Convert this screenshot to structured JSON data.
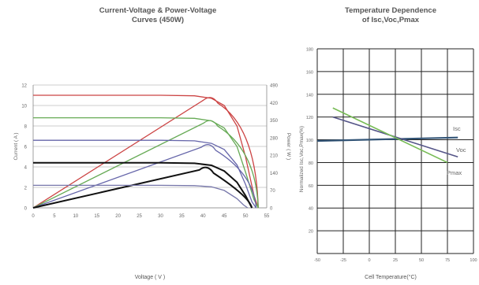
{
  "chart_data": [
    {
      "type": "line",
      "title": "Current-Voltage & Power-Voltage",
      "subtitle": "Curves (450W)",
      "xlabel": "Voltage ( V )",
      "ylabel": "Current ( A )",
      "ylabel_right": "Power ( W )",
      "xlim": [
        0,
        55
      ],
      "ylim": [
        0,
        12
      ],
      "ylim_right": [
        0,
        490
      ],
      "x_ticks": [
        "0",
        "5",
        "10",
        "15",
        "20",
        "25",
        "30",
        "35",
        "40",
        "45",
        "50",
        "55"
      ],
      "y_ticks": [
        "0",
        "2",
        "4",
        "6",
        "8",
        "10",
        "12"
      ],
      "y_ticks_right": [
        "0",
        "70",
        "140",
        "210",
        "280",
        "350",
        "420",
        "490"
      ],
      "grid": "horizontal",
      "series": [
        {
          "color": "#cc4444",
          "current_values": [
            [
              0,
              11.0
            ],
            [
              30,
              11.0
            ],
            [
              38,
              10.95
            ],
            [
              42,
              10.7
            ],
            [
              45,
              10.0
            ],
            [
              48,
              8.0
            ],
            [
              50,
              5.0
            ],
            [
              52,
              1.2
            ],
            [
              53,
              0
            ]
          ],
          "power_peak": [
            [
              0,
              0
            ],
            [
              42,
              449
            ],
            [
              53,
              0
            ]
          ]
        },
        {
          "color": "#66aa55",
          "current_values": [
            [
              0,
              8.8
            ],
            [
              30,
              8.8
            ],
            [
              38,
              8.75
            ],
            [
              42,
              8.5
            ],
            [
              45,
              7.8
            ],
            [
              48,
              6.0
            ],
            [
              50,
              3.5
            ],
            [
              52,
              0.8
            ],
            [
              53,
              0
            ]
          ],
          "power_peak": [
            [
              0,
              0
            ],
            [
              42,
              357
            ],
            [
              53,
              0
            ]
          ]
        },
        {
          "color": "#6666aa",
          "current_values": [
            [
              0,
              6.6
            ],
            [
              30,
              6.6
            ],
            [
              38,
              6.55
            ],
            [
              42,
              6.3
            ],
            [
              45,
              5.7
            ],
            [
              48,
              4.2
            ],
            [
              50,
              2.3
            ],
            [
              51.5,
              0.6
            ],
            [
              52.5,
              0
            ]
          ],
          "power_peak": [
            [
              0,
              0
            ],
            [
              41.5,
              261
            ],
            [
              52.5,
              0
            ]
          ]
        },
        {
          "color": "#111111",
          "current_values": [
            [
              0,
              4.4
            ],
            [
              30,
              4.4
            ],
            [
              38,
              4.35
            ],
            [
              42,
              4.15
            ],
            [
              45,
              3.6
            ],
            [
              48,
              2.5
            ],
            [
              50,
              1.2
            ],
            [
              51.5,
              0
            ]
          ],
          "power_peak": [
            [
              0,
              0
            ],
            [
              41,
              170
            ],
            [
              51.5,
              0
            ]
          ]
        },
        {
          "color": "#7777aa",
          "current_values": [
            [
              0,
              2.2
            ],
            [
              30,
              2.2
            ],
            [
              38,
              2.17
            ],
            [
              42,
              2.05
            ],
            [
              45,
              1.7
            ],
            [
              48,
              0.9
            ],
            [
              49.5,
              0.3
            ],
            [
              50.5,
              0
            ]
          ],
          "power_peak": null
        }
      ]
    },
    {
      "type": "line",
      "title": "Temperature Dependence",
      "subtitle": "of Isc,Voc,Pmax",
      "xlabel": "Cell Temperature(°C)",
      "ylabel": "Normalized Isc,Voc,Pmax(%)",
      "xlim": [
        -50,
        100
      ],
      "ylim": [
        0,
        180
      ],
      "x_ticks": [
        "-50",
        "-25",
        "0",
        "25",
        "50",
        "75",
        "100"
      ],
      "y_ticks": [
        "20",
        "40",
        "60",
        "80",
        "100",
        "120",
        "140",
        "160",
        "180"
      ],
      "grid": "both",
      "series": [
        {
          "name": "Isc",
          "color": "#335577",
          "x": [
            -50,
            85
          ],
          "y": [
            99,
            102
          ]
        },
        {
          "name": "Voc",
          "color": "#555588",
          "x": [
            -35,
            85
          ],
          "y": [
            120,
            85
          ]
        },
        {
          "name": "Pmax",
          "color": "#77bb55",
          "x": [
            -35,
            75
          ],
          "y": [
            128,
            80
          ]
        }
      ]
    }
  ]
}
